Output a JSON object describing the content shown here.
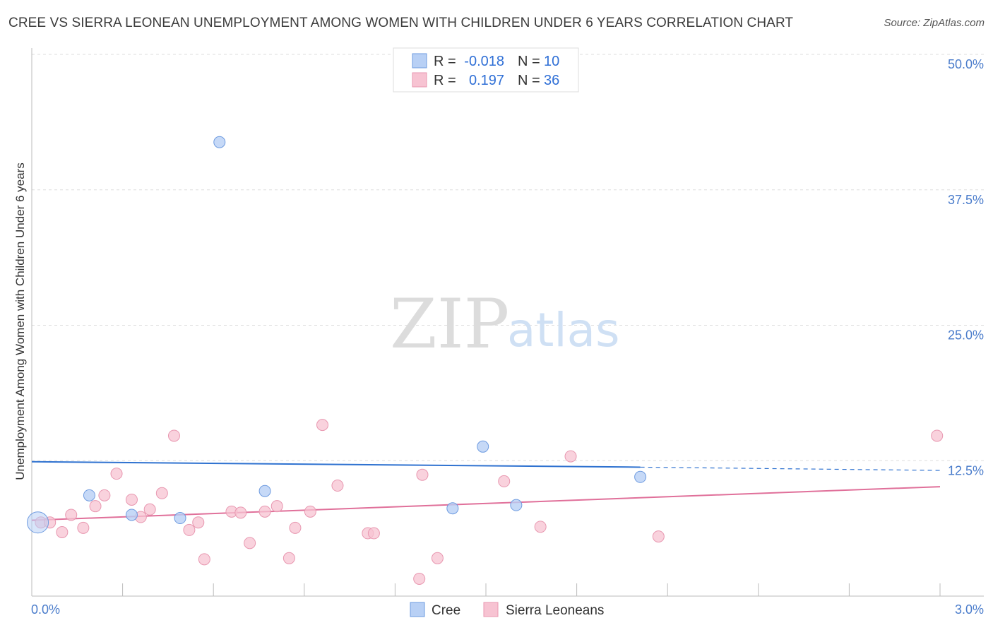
{
  "title": "CREE VS SIERRA LEONEAN UNEMPLOYMENT AMONG WOMEN WITH CHILDREN UNDER 6 YEARS CORRELATION CHART",
  "source": "Source: ZipAtlas.com",
  "watermark": {
    "zip": "ZIP",
    "atlas": "atlas"
  },
  "colors": {
    "cree_fill": "#b8d0f5",
    "cree_stroke": "#6e9be0",
    "cree_line": "#2f72d0",
    "sl_fill": "#f7c3d2",
    "sl_stroke": "#e897b0",
    "sl_line": "#e0709a",
    "grid": "#dddddd",
    "axis": "#bbbbbb"
  },
  "legend": {
    "rows": [
      {
        "r_label": "R =",
        "r_value": "-0.018",
        "n_label": "N =",
        "n_value": "10"
      },
      {
        "r_label": "R =",
        "r_value": "0.197",
        "n_label": "N =",
        "n_value": "36"
      }
    ]
  },
  "bottom_legend": [
    "Cree",
    "Sierra Leoneans"
  ],
  "chart_data": {
    "type": "scatter",
    "title": "CREE VS SIERRA LEONEAN UNEMPLOYMENT AMONG WOMEN WITH CHILDREN UNDER 6 YEARS CORRELATION CHART",
    "xlabel": "",
    "ylabel": "Unemployment Among Women with Children Under 6 years",
    "xlim": [
      0,
      3.0
    ],
    "ylim": [
      0,
      50.0
    ],
    "y_ticks": [
      {
        "value": 12.5,
        "label": "12.5%"
      },
      {
        "value": 25.0,
        "label": "25.0%"
      },
      {
        "value": 37.5,
        "label": "37.5%"
      },
      {
        "value": 50.0,
        "label": "50.0%"
      }
    ],
    "x_tick_labels": {
      "min": "0.0%",
      "max": "3.0%"
    },
    "series": [
      {
        "name": "Cree",
        "points": [
          {
            "x": 0.02,
            "y": 6.8,
            "big": true
          },
          {
            "x": 0.19,
            "y": 9.3
          },
          {
            "x": 0.33,
            "y": 7.5
          },
          {
            "x": 0.49,
            "y": 7.2
          },
          {
            "x": 0.62,
            "y": 41.9
          },
          {
            "x": 0.77,
            "y": 9.7
          },
          {
            "x": 1.39,
            "y": 8.1
          },
          {
            "x": 1.49,
            "y": 13.8
          },
          {
            "x": 1.6,
            "y": 8.4
          },
          {
            "x": 2.01,
            "y": 11.0
          }
        ],
        "trend": {
          "x0": 0,
          "y0": 12.4,
          "x1": 2.01,
          "y1": 11.9,
          "dash_x1": 3.0,
          "dash_y1": 11.6
        }
      },
      {
        "name": "Sierra Leoneans",
        "points": [
          {
            "x": 0.03,
            "y": 6.8
          },
          {
            "x": 0.06,
            "y": 6.8
          },
          {
            "x": 0.1,
            "y": 5.9
          },
          {
            "x": 0.13,
            "y": 7.5
          },
          {
            "x": 0.17,
            "y": 6.3
          },
          {
            "x": 0.21,
            "y": 8.3
          },
          {
            "x": 0.24,
            "y": 9.3
          },
          {
            "x": 0.28,
            "y": 11.3
          },
          {
            "x": 0.33,
            "y": 8.9
          },
          {
            "x": 0.36,
            "y": 7.3
          },
          {
            "x": 0.39,
            "y": 8.0
          },
          {
            "x": 0.43,
            "y": 9.5
          },
          {
            "x": 0.47,
            "y": 14.8
          },
          {
            "x": 0.52,
            "y": 6.1
          },
          {
            "x": 0.55,
            "y": 6.8
          },
          {
            "x": 0.57,
            "y": 3.4
          },
          {
            "x": 0.66,
            "y": 7.8
          },
          {
            "x": 0.69,
            "y": 7.7
          },
          {
            "x": 0.72,
            "y": 4.9
          },
          {
            "x": 0.77,
            "y": 7.8
          },
          {
            "x": 0.81,
            "y": 8.3
          },
          {
            "x": 0.85,
            "y": 3.5
          },
          {
            "x": 0.87,
            "y": 6.3
          },
          {
            "x": 0.92,
            "y": 7.8
          },
          {
            "x": 0.96,
            "y": 15.8
          },
          {
            "x": 1.01,
            "y": 10.2
          },
          {
            "x": 1.11,
            "y": 5.8
          },
          {
            "x": 1.13,
            "y": 5.8
          },
          {
            "x": 1.28,
            "y": 1.6
          },
          {
            "x": 1.29,
            "y": 11.2
          },
          {
            "x": 1.34,
            "y": 3.5
          },
          {
            "x": 1.56,
            "y": 10.6
          },
          {
            "x": 1.68,
            "y": 6.4
          },
          {
            "x": 1.78,
            "y": 12.9
          },
          {
            "x": 2.07,
            "y": 5.5
          },
          {
            "x": 2.99,
            "y": 14.8
          }
        ],
        "trend": {
          "x0": 0,
          "y0": 7.0,
          "x1": 3.0,
          "y1": 10.1
        }
      }
    ]
  }
}
